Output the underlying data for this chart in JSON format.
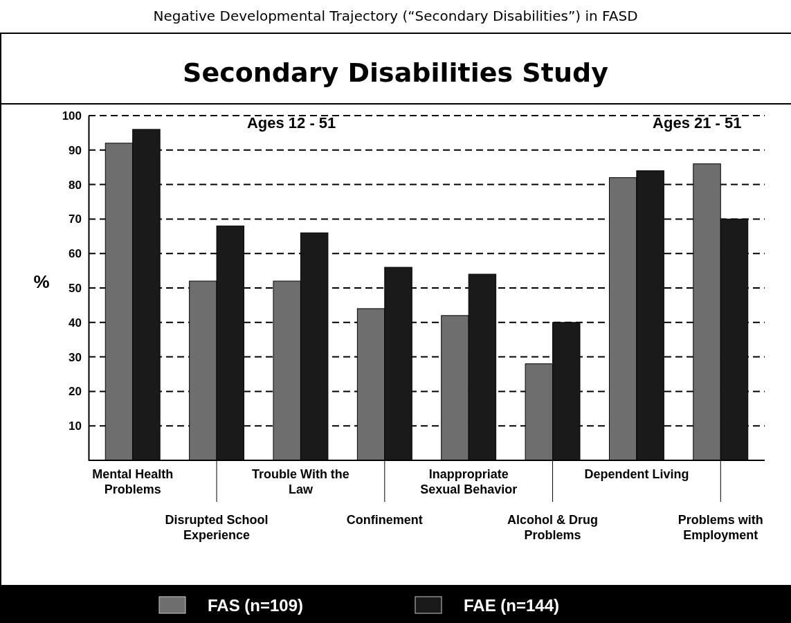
{
  "chart_data": {
    "type": "bar",
    "title": "Secondary Disabilities Study",
    "subtitle": "Negative Developmental Trajectory (“Secondary Disabilities”) in FASD",
    "ylabel": "%",
    "categories": [
      "Mental Health Problems",
      "Disrupted School Experience",
      "Trouble With the Law",
      "Confinement",
      "Inappropriate Sexual Behavior",
      "Alcohol & Drug Problems",
      "Dependent Living",
      "Problems with Employment"
    ],
    "series": [
      {
        "name": "FAS (n=109)",
        "color": "#6e6e6e",
        "values": [
          92,
          52,
          52,
          44,
          42,
          28,
          82,
          86
        ]
      },
      {
        "name": "FAE (n=144)",
        "color": "#1a1a1a",
        "values": [
          96,
          68,
          66,
          56,
          54,
          40,
          84,
          70
        ]
      }
    ],
    "ylim": [
      0,
      100
    ],
    "yticks": [
      {
        "value": 0,
        "label": null
      },
      10,
      20,
      30,
      40,
      50,
      60,
      70,
      80,
      90,
      100
    ],
    "grid": "y",
    "line_style": "dashed",
    "legend": "bottom",
    "annotations": [
      "Ages 12 - 51",
      "Ages 21 - 51"
    ]
  }
}
